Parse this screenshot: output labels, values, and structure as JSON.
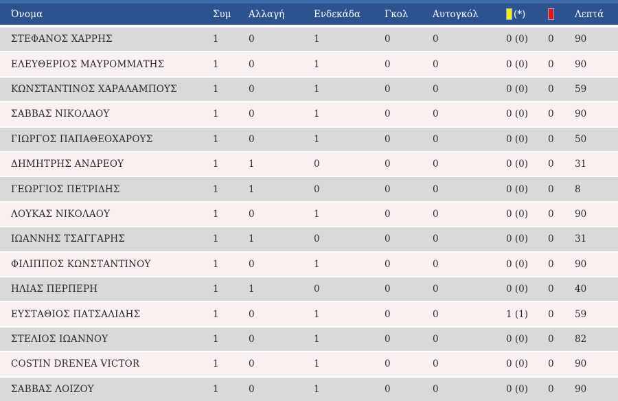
{
  "table": {
    "columns": [
      {
        "id": "name",
        "label": "Όνομα"
      },
      {
        "id": "appearances",
        "label": "Συμ"
      },
      {
        "id": "substitution",
        "label": "Αλλαγή"
      },
      {
        "id": "starting_xi",
        "label": "Ενδεκάδα"
      },
      {
        "id": "goals",
        "label": "Γκολ"
      },
      {
        "id": "own_goals",
        "label": "Αυτογκόλ"
      },
      {
        "id": "yellow_cards",
        "label": "(*)",
        "icon": "yellow-card-icon"
      },
      {
        "id": "red_cards",
        "label": "",
        "icon": "red-card-icon"
      },
      {
        "id": "minutes",
        "label": "Λεπτά"
      }
    ],
    "rows": [
      [
        "ΣΤΕΦΑΝΟΣ ΧΑΡΡΗΣ",
        "1",
        "0",
        "1",
        "0",
        "0",
        "0 (0)",
        "0",
        "90"
      ],
      [
        "ΕΛΕΥΘΕΡΙΟΣ ΜΑΥΡΟΜΜΑΤΗΣ",
        "1",
        "0",
        "1",
        "0",
        "0",
        "0 (0)",
        "0",
        "90"
      ],
      [
        "ΚΩΝΣΤΑΝΤΙΝΟΣ ΧΑΡΑΛΑΜΠΟΥΣ",
        "1",
        "0",
        "1",
        "0",
        "0",
        "0 (0)",
        "0",
        "59"
      ],
      [
        "ΣΑΒΒΑΣ ΝΙΚΟΛΑΟΥ",
        "1",
        "0",
        "1",
        "0",
        "0",
        "0 (0)",
        "0",
        "90"
      ],
      [
        "ΓΙΩΡΓΟΣ ΠΑΠΑΘΕΟΧΑΡΟΥΣ",
        "1",
        "0",
        "1",
        "0",
        "0",
        "0 (0)",
        "0",
        "50"
      ],
      [
        "ΔΗΜΗΤΡΗΣ ΑΝΔΡΕΟΥ",
        "1",
        "1",
        "0",
        "0",
        "0",
        "0 (0)",
        "0",
        "31"
      ],
      [
        "ΓΕΩΡΓΙΟΣ ΠΕΤΡΙΔΗΣ",
        "1",
        "1",
        "0",
        "0",
        "0",
        "0 (0)",
        "0",
        "8"
      ],
      [
        "ΛΟΥΚΑΣ ΝΙΚΟΛΑΟΥ",
        "1",
        "0",
        "1",
        "0",
        "0",
        "0 (0)",
        "0",
        "90"
      ],
      [
        "ΙΩΑΝΝΗΣ ΤΣΑΓΓΑΡΗΣ",
        "1",
        "1",
        "0",
        "0",
        "0",
        "0 (0)",
        "0",
        "31"
      ],
      [
        "ΦΙΛΙΠΠΟΣ ΚΩΝΣΤΑΝΤΙΝΟΥ",
        "1",
        "0",
        "1",
        "0",
        "0",
        "0 (0)",
        "0",
        "90"
      ],
      [
        "ΗΛΙΑΣ ΠΕΡΠΕΡΗ",
        "1",
        "1",
        "0",
        "0",
        "0",
        "0 (0)",
        "0",
        "40"
      ],
      [
        "ΕΥΣΤΑΘΙΟΣ ΠΑΤΣΑΛΙΔΗΣ",
        "1",
        "0",
        "1",
        "0",
        "0",
        "1 (1)",
        "0",
        "59"
      ],
      [
        "ΣΤΕΛΙΟΣ ΙΩΑΝΝΟΥ",
        "1",
        "0",
        "1",
        "0",
        "0",
        "0 (0)",
        "0",
        "82"
      ],
      [
        "COSTIN DRENEA VICTOR",
        "1",
        "0",
        "1",
        "0",
        "0",
        "0 (0)",
        "0",
        "90"
      ],
      [
        "ΣΑΒΒΑΣ ΛΟΙΖΟΥ",
        "1",
        "0",
        "1",
        "0",
        "0",
        "0 (0)",
        "0",
        "90"
      ]
    ]
  },
  "colors": {
    "header_bg": "#2c5390",
    "header_top_stripe": "#3e6ca8",
    "row_odd_bg": "#d9d9d9",
    "row_even_bg": "#f8f1ef",
    "yellow_card": "#f6ee0a",
    "red_card": "#ea1010",
    "card_outline": "#7fb2d9",
    "header_text": "#ffffff",
    "row_text": "#2a2a2a"
  }
}
